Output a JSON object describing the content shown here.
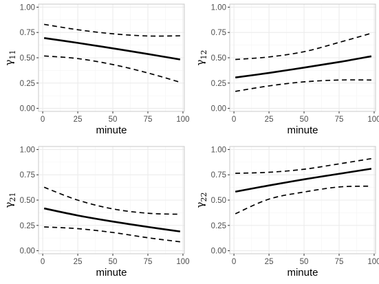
{
  "colors": {
    "line": "#000000",
    "grid_major": "#ebebeb",
    "grid_minor": "#f5f5f5",
    "panel_border": "#c9c9c9",
    "tick_text": "#4d4d4d"
  },
  "chart_data": [
    {
      "type": "line",
      "title": "",
      "xlabel": "minute",
      "ylabel": "γ11",
      "ylabel_main": "γ",
      "ylabel_sub": "11",
      "xlim": [
        -3,
        101
      ],
      "ylim": [
        -0.03,
        1.03
      ],
      "xticks": [
        0,
        25,
        50,
        75,
        100
      ],
      "yticks": [
        0.0,
        0.25,
        0.5,
        0.75,
        1.0
      ],
      "x_tick_labels": [
        "0",
        "25",
        "50",
        "75",
        "100"
      ],
      "y_tick_labels": [
        "0.00",
        "0.25",
        "0.50",
        "0.75",
        "1.00"
      ],
      "grid": true,
      "x": [
        1,
        25,
        50,
        75,
        98
      ],
      "series": [
        {
          "style": "solid",
          "values": [
            0.695,
            0.647,
            0.593,
            0.537,
            0.483
          ]
        },
        {
          "style": "dashed",
          "values": [
            0.83,
            0.777,
            0.737,
            0.715,
            0.717
          ]
        },
        {
          "style": "dashed",
          "values": [
            0.518,
            0.492,
            0.433,
            0.35,
            0.258
          ]
        }
      ]
    },
    {
      "type": "line",
      "title": "",
      "xlabel": "minute",
      "ylabel": "γ12",
      "ylabel_main": "γ",
      "ylabel_sub": "12",
      "xlim": [
        -3,
        101
      ],
      "ylim": [
        -0.03,
        1.03
      ],
      "xticks": [
        0,
        25,
        50,
        75,
        100
      ],
      "yticks": [
        0.0,
        0.25,
        0.5,
        0.75,
        1.0
      ],
      "x_tick_labels": [
        "0",
        "25",
        "50",
        "75",
        "100"
      ],
      "y_tick_labels": [
        "0.00",
        "0.25",
        "0.50",
        "0.75",
        "1.00"
      ],
      "grid": true,
      "x": [
        1,
        25,
        50,
        75,
        98
      ],
      "series": [
        {
          "style": "solid",
          "values": [
            0.305,
            0.35,
            0.403,
            0.458,
            0.515
          ]
        },
        {
          "style": "dashed",
          "values": [
            0.483,
            0.508,
            0.56,
            0.652,
            0.742
          ]
        },
        {
          "style": "dashed",
          "values": [
            0.168,
            0.222,
            0.262,
            0.28,
            0.28
          ]
        }
      ]
    },
    {
      "type": "line",
      "title": "",
      "xlabel": "minute",
      "ylabel": "γ21",
      "ylabel_main": "γ",
      "ylabel_sub": "21",
      "xlim": [
        -3,
        101
      ],
      "ylim": [
        -0.03,
        1.03
      ],
      "xticks": [
        0,
        25,
        50,
        75,
        100
      ],
      "yticks": [
        0.0,
        0.25,
        0.5,
        0.75,
        1.0
      ],
      "x_tick_labels": [
        "0",
        "25",
        "50",
        "75",
        "100"
      ],
      "y_tick_labels": [
        "0.00",
        "0.25",
        "0.50",
        "0.75",
        "1.00"
      ],
      "grid": true,
      "x": [
        1,
        25,
        50,
        75,
        98
      ],
      "series": [
        {
          "style": "solid",
          "values": [
            0.418,
            0.348,
            0.288,
            0.235,
            0.19
          ]
        },
        {
          "style": "dashed",
          "values": [
            0.627,
            0.5,
            0.413,
            0.37,
            0.36
          ]
        },
        {
          "style": "dashed",
          "values": [
            0.235,
            0.218,
            0.18,
            0.128,
            0.088
          ]
        }
      ]
    },
    {
      "type": "line",
      "title": "",
      "xlabel": "minute",
      "ylabel": "γ22",
      "ylabel_main": "γ",
      "ylabel_sub": "22",
      "xlim": [
        -3,
        101
      ],
      "ylim": [
        -0.03,
        1.03
      ],
      "xticks": [
        0,
        25,
        50,
        75,
        100
      ],
      "yticks": [
        0.0,
        0.25,
        0.5,
        0.75,
        1.0
      ],
      "x_tick_labels": [
        "0",
        "25",
        "50",
        "75",
        "100"
      ],
      "y_tick_labels": [
        "0.00",
        "0.25",
        "0.50",
        "0.75",
        "1.00"
      ],
      "grid": true,
      "x": [
        1,
        25,
        50,
        75,
        98
      ],
      "series": [
        {
          "style": "solid",
          "values": [
            0.583,
            0.645,
            0.705,
            0.76,
            0.81
          ]
        },
        {
          "style": "dashed",
          "values": [
            0.765,
            0.775,
            0.805,
            0.858,
            0.91
          ]
        },
        {
          "style": "dashed",
          "values": [
            0.365,
            0.51,
            0.58,
            0.63,
            0.638
          ]
        }
      ]
    }
  ]
}
